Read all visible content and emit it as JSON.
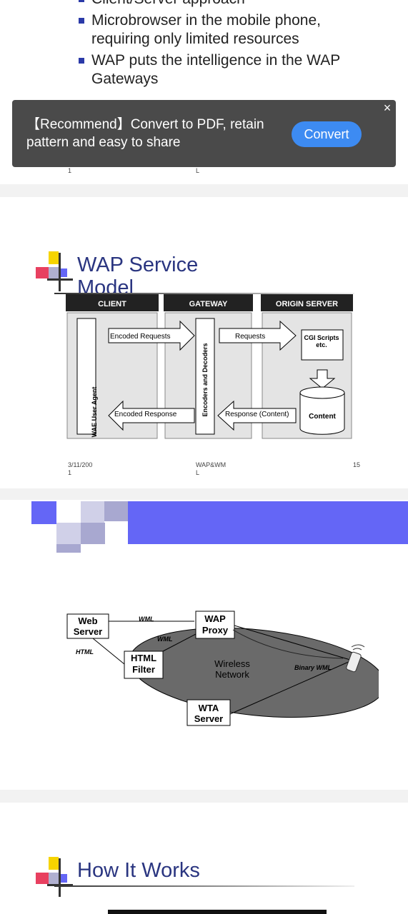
{
  "slide1": {
    "bullets": [
      "Client/Server approach",
      "Microbrowser in the mobile phone, requiring only limited resources",
      "WAP puts the intelligence in the WAP Gateways"
    ],
    "footer_left": "1",
    "footer_center": "L"
  },
  "banner": {
    "text": "【Recommend】Convert to PDF, retain pattern and easy to share",
    "convert_label": "Convert",
    "close_label": "×"
  },
  "slide2": {
    "title": "WAP Service Model",
    "diagram": {
      "headers": [
        "CLIENT",
        "GATEWAY",
        "ORIGIN SERVER"
      ],
      "user_agent": "WAE User Agent",
      "encoders": "Encoders and Decoders",
      "encoded_requests": "Encoded Requests",
      "requests": "Requests",
      "encoded_response": "Encoded Response",
      "response": "Response (Content)",
      "cgi": "CGI Scripts etc.",
      "content": "Content"
    },
    "footer_left": "3/11/200\n1",
    "footer_center": "WAP&WM\nL",
    "footer_right": "15"
  },
  "slide3": {
    "diagram": {
      "web_server": "Web Server",
      "wap_proxy": "WAP Proxy",
      "html_filter": "HTML Filter",
      "wireless_network": "Wireless Network",
      "wta_server": "WTA Server",
      "wml_top": "WML",
      "wml_mid": "WML",
      "html": "HTML",
      "binary_wml": "Binary WML"
    }
  },
  "slide4": {
    "title": "How It Works"
  },
  "colors": {
    "accent_blue": "#6466f6",
    "title_blue": "#2a3580",
    "banner_bg": "#4a4a4a",
    "button_blue": "#3d8bf2"
  }
}
